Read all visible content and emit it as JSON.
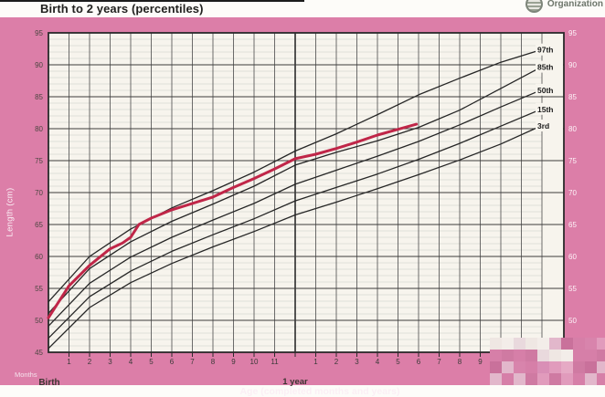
{
  "header": {
    "title": "Birth to 2 years (percentiles)",
    "who_org_label": "Organization"
  },
  "axis_text": {
    "y_title": "Length (cm)",
    "x_title": "Age (completed months and years)",
    "months_label": "Months",
    "birth_label": "Birth",
    "one_year_label": "1 year"
  },
  "colors": {
    "card_pink": "#dc7ea8",
    "paper": "#f7f4ed",
    "major_grid": "#3c3c3c",
    "minor_grid": "#d7dbd2",
    "month_grid": "#5c5c5c",
    "curve_black": "#262626",
    "patient_red": "#c02648",
    "left_tick_text": "#4c4641",
    "right_tick_text": "#fdf3f8",
    "bottom_tick_text": "#3a3a38",
    "mosaic_palette_light": [
      "#efe7e3",
      "#f3ede9",
      "#e9d9dd"
    ],
    "mosaic_palette_pink": [
      "#d884ac",
      "#cf7aa2",
      "#c9719b",
      "#e19bbc",
      "#e6aac5",
      "#d67fa8",
      "#d98fb6",
      "#e2b7cb"
    ]
  },
  "chart_data": {
    "type": "line",
    "title": "Birth to 2 years (percentiles)",
    "xlabel": "Age (completed months and years)",
    "ylabel": "Length (cm)",
    "xlim": [
      0,
      24
    ],
    "ylim": [
      45,
      95
    ],
    "grid": "on",
    "legend_position": "right-edge-labels",
    "y_ticks_left": [
      95,
      90,
      85,
      80,
      75,
      70,
      65,
      60,
      55,
      50,
      45
    ],
    "y_ticks_right": [
      95,
      90,
      85,
      80,
      75,
      70,
      65,
      60,
      55,
      50
    ],
    "x_ticks_year1": [
      "1",
      "2",
      "3",
      "4",
      "5",
      "6",
      "7",
      "8",
      "9",
      "10",
      "11"
    ],
    "x_ticks_year2": [
      "1",
      "2",
      "3",
      "4",
      "5",
      "6",
      "7",
      "8",
      "9"
    ],
    "percentile_series": [
      {
        "name": "97th",
        "months": [
          0,
          2,
          4,
          6,
          8,
          10,
          12,
          14,
          16,
          18,
          20,
          22,
          24
        ],
        "cm": [
          52.9,
          60.0,
          64.3,
          67.6,
          70.3,
          73.2,
          76.5,
          79.2,
          82.2,
          85.3,
          87.9,
          90.4,
          92.4
        ]
      },
      {
        "name": "85th",
        "months": [
          0,
          2,
          4,
          6,
          8,
          10,
          12,
          14,
          16,
          18,
          20,
          22,
          24
        ],
        "cm": [
          51.1,
          58.1,
          62.3,
          65.5,
          68.2,
          71.0,
          74.3,
          76.3,
          78.1,
          80.2,
          82.9,
          86.3,
          89.7
        ]
      },
      {
        "name": "50th",
        "months": [
          0,
          2,
          4,
          6,
          8,
          10,
          12,
          14,
          16,
          18,
          20,
          22,
          24
        ],
        "cm": [
          49.1,
          55.8,
          59.9,
          63.0,
          65.7,
          68.3,
          71.3,
          73.5,
          75.7,
          78.0,
          80.6,
          83.4,
          86.1
        ]
      },
      {
        "name": "15th",
        "months": [
          0,
          2,
          4,
          6,
          8,
          10,
          12,
          14,
          16,
          18,
          20,
          22,
          24
        ],
        "cm": [
          47.2,
          53.7,
          57.7,
          60.8,
          63.4,
          65.9,
          68.7,
          70.8,
          72.9,
          75.2,
          77.7,
          80.4,
          83.1
        ]
      },
      {
        "name": "3rd",
        "months": [
          0,
          2,
          4,
          6,
          8,
          10,
          12,
          14,
          16,
          18,
          20,
          22,
          24
        ],
        "cm": [
          45.6,
          52.0,
          55.9,
          58.9,
          61.5,
          63.9,
          66.5,
          68.5,
          70.6,
          72.8,
          75.1,
          77.6,
          80.5
        ]
      }
    ],
    "patient_series": {
      "name": "plotted-child-length",
      "months": [
        0,
        1,
        2,
        3,
        3.6,
        4,
        4.4,
        5,
        6,
        7,
        8,
        9,
        10,
        11,
        12,
        13,
        14,
        15,
        16,
        17,
        17.9
      ],
      "cm": [
        50.4,
        55.4,
        58.6,
        61.2,
        62.1,
        63.0,
        65.0,
        66.0,
        67.3,
        68.3,
        69.3,
        70.8,
        72.2,
        73.7,
        75.3,
        76.0,
        76.9,
        77.9,
        79.0,
        79.9,
        80.7
      ]
    }
  }
}
